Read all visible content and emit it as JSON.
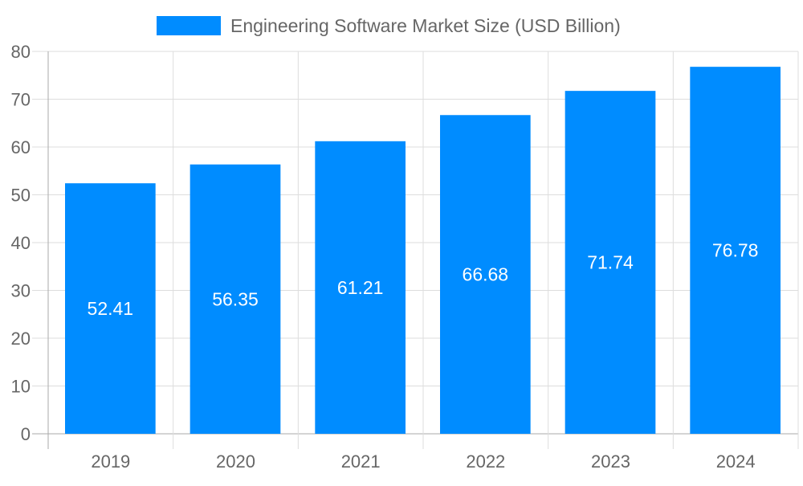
{
  "chart_data": {
    "type": "bar",
    "categories": [
      "2019",
      "2020",
      "2021",
      "2022",
      "2023",
      "2024"
    ],
    "series": [
      {
        "name": "Engineering Software Market Size (USD Billion)",
        "values": [
          52.41,
          56.35,
          61.21,
          66.68,
          71.74,
          76.78
        ]
      }
    ],
    "data_labels": [
      "52.41",
      "56.35",
      "61.21",
      "66.68",
      "71.74",
      "76.78"
    ],
    "yticks": [
      "0",
      "10",
      "20",
      "30",
      "40",
      "50",
      "60",
      "70",
      "80"
    ],
    "ylim": [
      0,
      80
    ],
    "grid": true,
    "legend_position": "top",
    "colors": {
      "bar": "#008cff",
      "text": "#666666",
      "grid": "#dddddd",
      "axis": "#aaaaaa"
    }
  }
}
